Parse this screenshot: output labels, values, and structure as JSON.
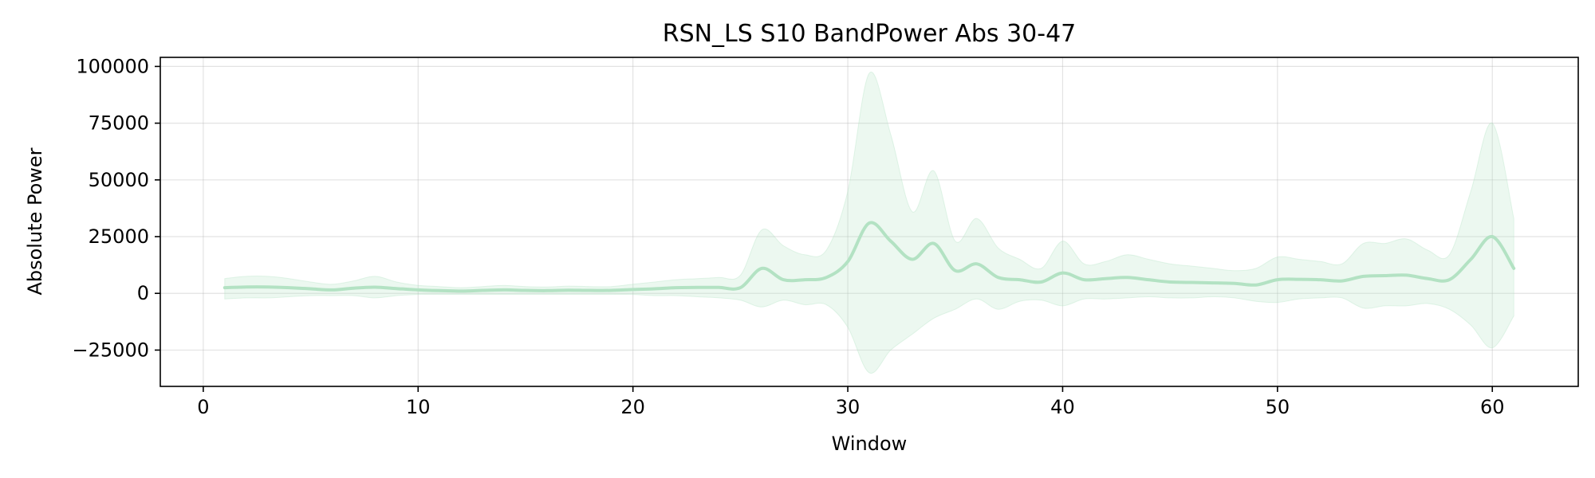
{
  "chart_data": {
    "type": "line",
    "title": "RSN_LS S10 BandPower Abs 30-47",
    "xlabel": "Window",
    "ylabel": "Absolute Power",
    "xlim": [
      -2,
      64
    ],
    "ylim": [
      -41000,
      104000
    ],
    "xticks": [
      0,
      10,
      20,
      30,
      40,
      50,
      60
    ],
    "yticks": [
      -25000,
      0,
      25000,
      50000,
      75000,
      100000
    ],
    "ytick_labels": [
      "−25000",
      "0",
      "25000",
      "50000",
      "75000",
      "100000"
    ],
    "grid": true,
    "legend": "none",
    "series": [
      {
        "color": "#b3e2c3",
        "band_color": "#b3e2c3",
        "x": [
          1,
          2,
          3,
          4,
          5,
          6,
          7,
          8,
          9,
          10,
          11,
          12,
          13,
          14,
          15,
          16,
          17,
          18,
          19,
          20,
          21,
          22,
          23,
          24,
          25,
          26,
          27,
          28,
          29,
          30,
          31,
          32,
          33,
          34,
          35,
          36,
          37,
          38,
          39,
          40,
          41,
          42,
          43,
          44,
          45,
          46,
          47,
          48,
          49,
          50,
          51,
          52,
          53,
          54,
          55,
          56,
          57,
          58,
          59,
          60,
          61
        ],
        "mean": [
          2500,
          2800,
          2800,
          2500,
          2000,
          1500,
          2300,
          2700,
          2100,
          1500,
          1200,
          1000,
          1300,
          1500,
          1300,
          1200,
          1400,
          1300,
          1300,
          1700,
          2000,
          2500,
          2600,
          2600,
          2500,
          11000,
          6000,
          6000,
          7000,
          14000,
          31000,
          23000,
          15000,
          22000,
          10000,
          13000,
          7000,
          6000,
          5000,
          9000,
          6000,
          6500,
          7000,
          6000,
          5000,
          4800,
          4600,
          4400,
          3700,
          6000,
          6200,
          6000,
          5500,
          7500,
          7800,
          8000,
          6500,
          6000,
          15000,
          25000,
          11000
        ],
        "upper": [
          6500,
          7500,
          7500,
          6500,
          5000,
          4000,
          5500,
          7500,
          5000,
          3500,
          3000,
          2500,
          3000,
          3500,
          3000,
          2800,
          3200,
          3000,
          3000,
          4000,
          5000,
          6000,
          6500,
          7000,
          8000,
          28000,
          21000,
          17000,
          19000,
          45000,
          97000,
          70000,
          36000,
          54000,
          23000,
          33000,
          20000,
          15000,
          11000,
          23000,
          13000,
          14000,
          17000,
          15000,
          13000,
          12000,
          11000,
          10000,
          11000,
          16000,
          15000,
          14000,
          13000,
          22000,
          22000,
          24000,
          19000,
          17000,
          45000,
          75000,
          33000
        ],
        "lower": [
          -2500,
          -2000,
          -2000,
          -1500,
          -1000,
          -1000,
          -1000,
          -2000,
          -1000,
          -500,
          -500,
          -500,
          -500,
          -500,
          -500,
          -500,
          -500,
          -500,
          -500,
          -500,
          -1000,
          -1000,
          -1500,
          -2000,
          -3000,
          -6000,
          -3000,
          -5000,
          -5000,
          -15000,
          -35000,
          -25000,
          -18000,
          -11000,
          -7000,
          -2500,
          -7000,
          -3500,
          -3000,
          -5500,
          -2500,
          -2500,
          -2000,
          -1500,
          -2000,
          -2000,
          -1500,
          -2000,
          -3500,
          -4000,
          -2500,
          -2000,
          -2000,
          -6500,
          -5500,
          -5500,
          -4500,
          -7000,
          -14000,
          -24000,
          -10000
        ]
      }
    ]
  }
}
